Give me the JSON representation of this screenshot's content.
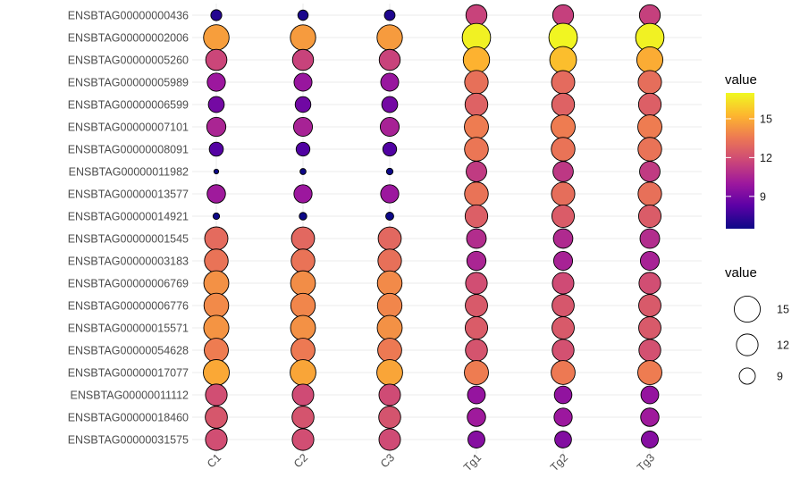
{
  "chart_data": {
    "type": "bubble",
    "title": "",
    "xlabel": "",
    "ylabel": "",
    "categories_x": [
      "C1",
      "C2",
      "C3",
      "Tg1",
      "Tg2",
      "Tg3"
    ],
    "categories_y": [
      "ENSBTAG00000000436",
      "ENSBTAG00000002006",
      "ENSBTAG00000005260",
      "ENSBTAG00000005989",
      "ENSBTAG00000006599",
      "ENSBTAG00000007101",
      "ENSBTAG00000008091",
      "ENSBTAG00000011982",
      "ENSBTAG00000013577",
      "ENSBTAG00000014921",
      "ENSBTAG00000001545",
      "ENSBTAG00000003183",
      "ENSBTAG00000006769",
      "ENSBTAG00000006776",
      "ENSBTAG00000015571",
      "ENSBTAG00000054628",
      "ENSBTAG00000017077",
      "ENSBTAG00000011112",
      "ENSBTAG00000018460",
      "ENSBTAG00000031575"
    ],
    "values": [
      [
        7.0,
        6.8,
        6.9,
        11.6,
        11.5,
        11.5
      ],
      [
        14.6,
        14.5,
        14.5,
        16.8,
        16.9,
        16.8
      ],
      [
        11.7,
        11.6,
        11.6,
        15.2,
        15.5,
        15.0
      ],
      [
        10.0,
        9.9,
        9.9,
        13.2,
        13.0,
        13.1
      ],
      [
        8.9,
        8.8,
        8.9,
        12.7,
        12.7,
        12.6
      ],
      [
        10.5,
        10.4,
        10.4,
        13.6,
        13.6,
        13.6
      ],
      [
        8.1,
        8.0,
        8.0,
        13.4,
        13.3,
        13.3
      ],
      [
        5.6,
        5.8,
        5.9,
        11.3,
        11.2,
        11.3
      ],
      [
        10.1,
        10.0,
        10.0,
        13.3,
        13.1,
        13.2
      ],
      [
        5.9,
        6.1,
        6.2,
        12.6,
        12.5,
        12.5
      ],
      [
        13.0,
        12.9,
        12.9,
        10.8,
        10.7,
        10.8
      ],
      [
        13.3,
        13.3,
        13.2,
        10.5,
        10.4,
        10.4
      ],
      [
        14.2,
        14.1,
        14.0,
        12.0,
        11.9,
        12.0
      ],
      [
        14.0,
        13.9,
        13.9,
        12.4,
        12.3,
        12.4
      ],
      [
        14.3,
        14.2,
        14.2,
        12.5,
        12.4,
        12.4
      ],
      [
        13.6,
        13.5,
        13.5,
        12.2,
        12.1,
        12.1
      ],
      [
        14.9,
        14.8,
        14.8,
        13.6,
        13.5,
        13.6
      ],
      [
        12.0,
        11.9,
        11.9,
        9.8,
        9.7,
        9.8
      ],
      [
        12.3,
        12.2,
        12.2,
        10.1,
        10.0,
        10.1
      ],
      [
        12.0,
        12.0,
        11.9,
        9.4,
        9.3,
        9.4
      ]
    ],
    "color_scale": {
      "name": "plasma",
      "range": [
        6.5,
        17.0
      ],
      "stops": [
        "#0d0887",
        "#5c01a6",
        "#9c179e",
        "#cc4778",
        "#ed7953",
        "#fdb42f",
        "#f0f921"
      ]
    },
    "size_scale": {
      "range": [
        5.5,
        17.0
      ]
    },
    "legends": {
      "color": {
        "title": "value",
        "ticks": [
          9,
          12,
          15
        ]
      },
      "size": {
        "title": "value",
        "ticks": [
          15,
          12,
          9
        ]
      }
    },
    "grid": true,
    "legend_position": "right"
  }
}
